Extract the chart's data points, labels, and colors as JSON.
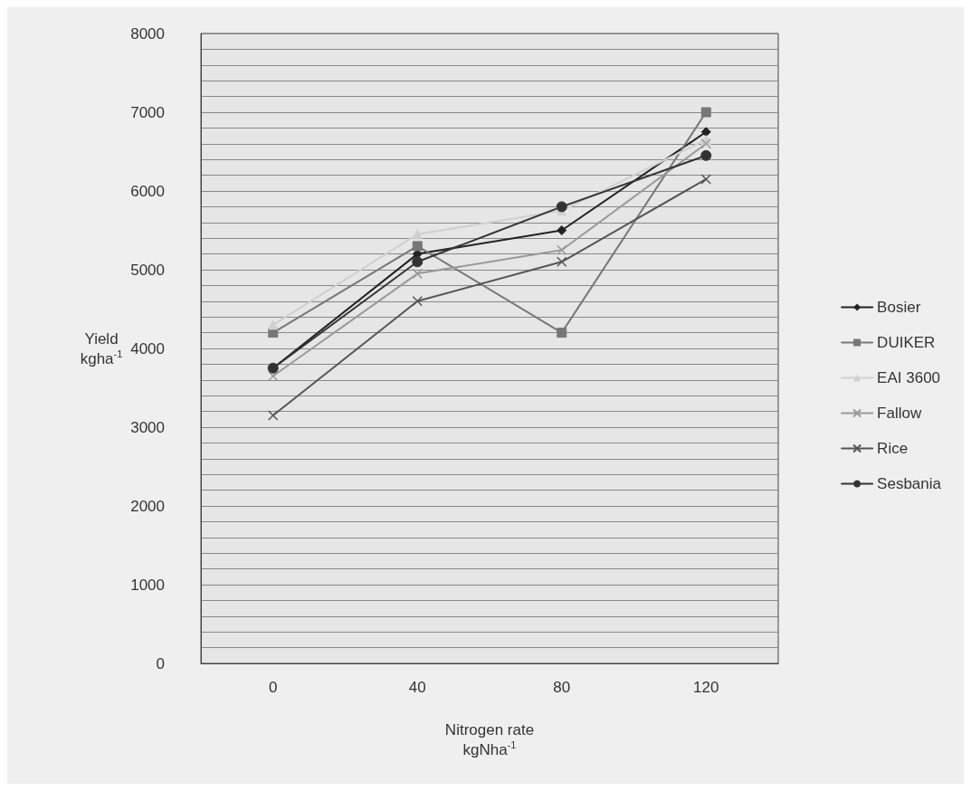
{
  "chart_data": {
    "type": "line",
    "xlabel": "Nitrogen rate\nkgNha$^{-1}$",
    "ylabel": "Yield\nkgha$^{-1}$",
    "categories": [
      "0",
      "40",
      "80",
      "120"
    ],
    "series": [
      {
        "name": "Bosier",
        "color": "#222222",
        "marker": "diamond",
        "values": [
          3750,
          5200,
          5500,
          6750
        ]
      },
      {
        "name": "DUIKER",
        "color": "#777777",
        "marker": "square",
        "values": [
          4200,
          5300,
          4200,
          7000
        ]
      },
      {
        "name": "EAI 3600",
        "color": "#d0d0d0",
        "marker": "triangle",
        "values": [
          4300,
          5450,
          5750,
          6650
        ]
      },
      {
        "name": "Fallow",
        "color": "#999999",
        "marker": "cross",
        "values": [
          3650,
          4950,
          5250,
          6600
        ]
      },
      {
        "name": "Rice",
        "color": "#555555",
        "marker": "cross",
        "values": [
          3150,
          4600,
          5100,
          6150
        ]
      },
      {
        "name": "Sesbania",
        "color": "#333333",
        "marker": "circle",
        "values": [
          3750,
          5100,
          5800,
          6450
        ]
      }
    ],
    "ylim": [
      0,
      8000
    ],
    "yticks": [
      0,
      {
        "value": 200,
        "label": null
      },
      {
        "value": 400,
        "label": null
      },
      {
        "value": 600,
        "label": null
      },
      {
        "value": 800,
        "label": null
      },
      1000,
      {
        "value": 1200,
        "label": null
      },
      {
        "value": 1400,
        "label": null
      },
      {
        "value": 1600,
        "label": null
      },
      {
        "value": 1800,
        "label": null
      },
      2000,
      {
        "value": 2200,
        "label": null
      },
      {
        "value": 2400,
        "label": null
      },
      {
        "value": 2600,
        "label": null
      },
      {
        "value": 2800,
        "label": null
      },
      3000,
      {
        "value": 3200,
        "label": null
      },
      {
        "value": 3400,
        "label": null
      },
      {
        "value": 3600,
        "label": null
      },
      {
        "value": 3800,
        "label": null
      },
      4000,
      {
        "value": 4200,
        "label": null
      },
      {
        "value": 4400,
        "label": null
      },
      {
        "value": 4600,
        "label": null
      },
      {
        "value": 4800,
        "label": null
      },
      5000,
      {
        "value": 5200,
        "label": null
      },
      {
        "value": 5400,
        "label": null
      },
      {
        "value": 5600,
        "label": null
      },
      {
        "value": 5800,
        "label": null
      },
      6000,
      {
        "value": 6200,
        "label": null
      },
      {
        "value": 6400,
        "label": null
      },
      {
        "value": 6600,
        "label": null
      },
      {
        "value": 6800,
        "label": null
      },
      7000,
      {
        "value": 7200,
        "label": null
      },
      {
        "value": 7400,
        "label": null
      },
      {
        "value": 7600,
        "label": null
      },
      {
        "value": 7800,
        "label": null
      },
      8000
    ],
    "grid": "y",
    "legend": "right",
    "line_style": "solid"
  }
}
